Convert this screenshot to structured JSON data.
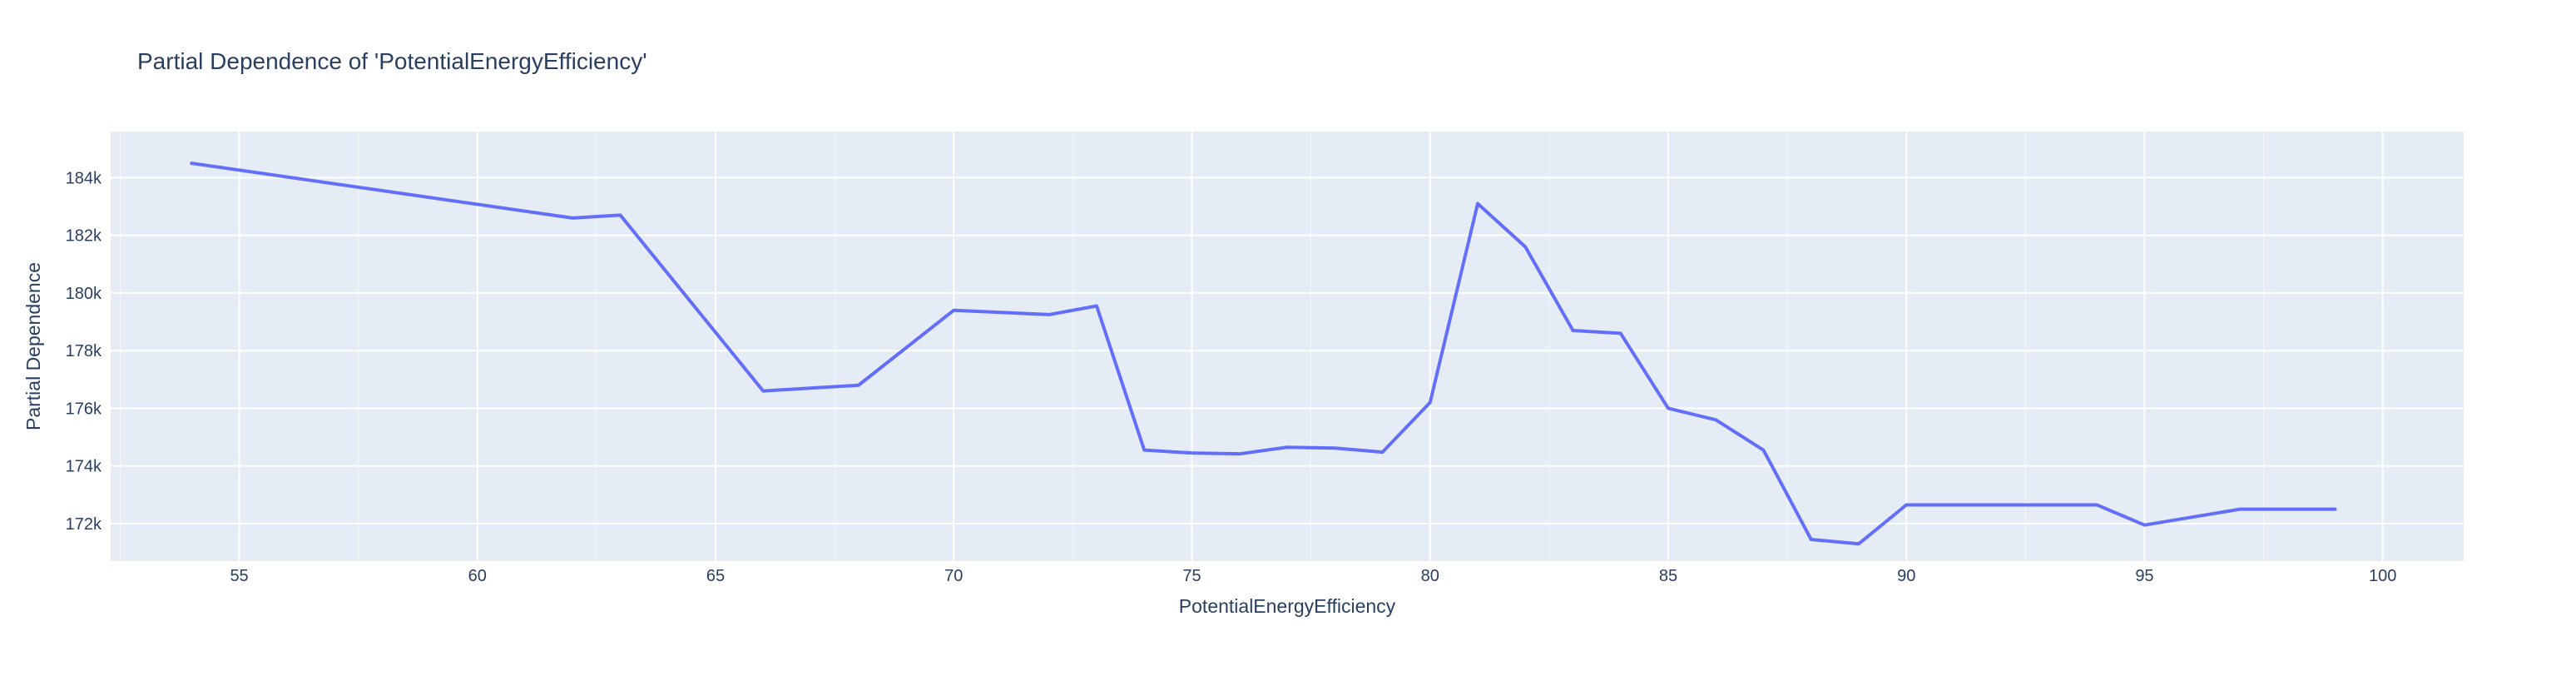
{
  "chart_data": {
    "type": "line",
    "title": "Partial Dependence of 'PotentialEnergyEfficiency'",
    "xlabel": "PotentialEnergyEfficiency",
    "ylabel": "Partial Dependence",
    "xlim": [
      52.3,
      101.7
    ],
    "ylim": [
      170700,
      185600
    ],
    "x_ticks": [
      55,
      60,
      65,
      70,
      75,
      80,
      85,
      90,
      95,
      100
    ],
    "y_ticks": [
      172000,
      174000,
      176000,
      178000,
      180000,
      182000,
      184000
    ],
    "x_tick_labels": [
      "55",
      "60",
      "65",
      "70",
      "75",
      "80",
      "85",
      "90",
      "95",
      "100"
    ],
    "y_tick_labels": [
      "172k",
      "174k",
      "176k",
      "178k",
      "180k",
      "182k",
      "184k"
    ],
    "grid": true,
    "colors": {
      "line": "#636efa",
      "plot_bg": "#e5ecf6",
      "grid": "#ffffff",
      "text": "#2a3f5f"
    },
    "series": [
      {
        "x": [
          54,
          62,
          63,
          66,
          68,
          70,
          72,
          73,
          74,
          75,
          76,
          77,
          78,
          79,
          80,
          81,
          82,
          83,
          84,
          85,
          86,
          87,
          88,
          89,
          90,
          94,
          95,
          97,
          99
        ],
        "values": [
          184500,
          182600,
          182700,
          176600,
          176800,
          179400,
          179250,
          179550,
          174550,
          174450,
          174420,
          174650,
          174620,
          174480,
          176200,
          183100,
          181600,
          178700,
          178600,
          176000,
          175600,
          174550,
          171450,
          171300,
          172650,
          172650,
          171950,
          172500,
          172500
        ]
      }
    ]
  }
}
